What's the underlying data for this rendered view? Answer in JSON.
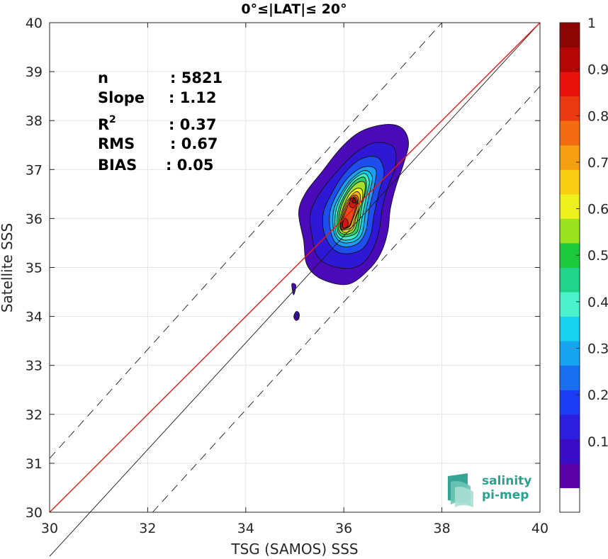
{
  "chart_data": {
    "type": "contour-scatter",
    "title": "0°≤|LAT|≤ 20°",
    "xlabel": "TSG (SAMOS) SSS",
    "ylabel": "Satellite SSS",
    "xlim": [
      30,
      40
    ],
    "ylim": [
      30,
      40
    ],
    "xticks": [
      "30",
      "32",
      "34",
      "36",
      "38",
      "40"
    ],
    "yticks": [
      "30",
      "31",
      "32",
      "33",
      "34",
      "35",
      "36",
      "37",
      "38",
      "39",
      "40"
    ],
    "grid": true,
    "stats": [
      {
        "label": "n",
        "value": ": 5821"
      },
      {
        "label": "Slope",
        "value": ": 1.12"
      },
      {
        "label": "R",
        "sup": "2",
        "value": ": 0.37"
      },
      {
        "label": "RMS",
        "value": ": 0.67"
      },
      {
        "label": "BIAS",
        "value": ": 0.05"
      }
    ],
    "lines": [
      {
        "name": "identity",
        "color": "#1a1a1a",
        "style": "solid",
        "points": [
          [
            30,
            29.1
          ],
          [
            40,
            40
          ]
        ]
      },
      {
        "name": "regression",
        "color": "#e8190f",
        "style": "solid",
        "points": [
          [
            30,
            30
          ],
          [
            40,
            40
          ]
        ]
      },
      {
        "name": "upper-bound",
        "color": "#1a1a1a",
        "style": "dashed",
        "points": [
          [
            30,
            31.1
          ],
          [
            38.0,
            40
          ]
        ]
      },
      {
        "name": "lower-bound",
        "color": "#1a1a1a",
        "style": "dashed",
        "points": [
          [
            32.1,
            30
          ],
          [
            40,
            38.7
          ]
        ]
      }
    ],
    "density_levels": [
      {
        "level": 0.05,
        "color": "#4a0ab8"
      },
      {
        "level": 0.1,
        "color": "#2e18d6"
      },
      {
        "level": 0.2,
        "color": "#1e4ef0"
      },
      {
        "level": 0.3,
        "color": "#1e9ef5"
      },
      {
        "level": 0.35,
        "color": "#14cdea"
      },
      {
        "level": 0.4,
        "color": "#3ff0c0"
      },
      {
        "level": 0.5,
        "color": "#2cd06a"
      },
      {
        "level": 0.6,
        "color": "#a6e22a"
      },
      {
        "level": 0.65,
        "color": "#f1f01a"
      },
      {
        "level": 0.7,
        "color": "#f8b413"
      },
      {
        "level": 0.8,
        "color": "#f07d14"
      },
      {
        "level": 0.85,
        "color": "#e84718"
      },
      {
        "level": 0.9,
        "color": "#d81512"
      },
      {
        "level": 1.0,
        "color": "#8c0a0a"
      }
    ],
    "contours": [
      {
        "level": 0.05,
        "points": [
          [
            36.1,
            34.66
          ],
          [
            35.55,
            34.76
          ],
          [
            35.25,
            35.05
          ],
          [
            35.18,
            35.55
          ],
          [
            35.08,
            36.12
          ],
          [
            35.22,
            36.52
          ],
          [
            35.55,
            36.95
          ],
          [
            35.95,
            37.45
          ],
          [
            36.35,
            37.78
          ],
          [
            36.85,
            37.92
          ],
          [
            37.18,
            37.85
          ],
          [
            37.32,
            37.55
          ],
          [
            37.22,
            37.12
          ],
          [
            37.06,
            36.65
          ],
          [
            36.95,
            36.2
          ],
          [
            36.9,
            35.75
          ],
          [
            36.78,
            35.35
          ],
          [
            36.55,
            35.0
          ]
        ]
      },
      {
        "level": 0.1,
        "points": [
          [
            36.1,
            34.98
          ],
          [
            35.7,
            35.05
          ],
          [
            35.45,
            35.25
          ],
          [
            35.35,
            35.65
          ],
          [
            35.32,
            36.1
          ],
          [
            35.5,
            36.5
          ],
          [
            35.85,
            36.95
          ],
          [
            36.25,
            37.35
          ],
          [
            36.65,
            37.55
          ],
          [
            37.02,
            37.45
          ],
          [
            37.05,
            37.05
          ],
          [
            36.9,
            36.65
          ],
          [
            36.78,
            36.2
          ],
          [
            36.72,
            35.75
          ],
          [
            36.58,
            35.35
          ],
          [
            36.38,
            35.08
          ]
        ]
      },
      {
        "level": 0.2,
        "points": [
          [
            36.05,
            35.28
          ],
          [
            35.78,
            35.38
          ],
          [
            35.6,
            35.7
          ],
          [
            35.58,
            36.1
          ],
          [
            35.72,
            36.45
          ],
          [
            35.98,
            36.88
          ],
          [
            36.32,
            37.2
          ],
          [
            36.68,
            37.25
          ],
          [
            36.82,
            36.95
          ],
          [
            36.72,
            36.55
          ],
          [
            36.62,
            36.1
          ],
          [
            36.55,
            35.68
          ],
          [
            36.38,
            35.38
          ]
        ]
      },
      {
        "level": 0.3,
        "points": [
          [
            36.03,
            35.42
          ],
          [
            35.82,
            35.52
          ],
          [
            35.72,
            35.8
          ],
          [
            35.72,
            36.15
          ],
          [
            35.86,
            36.5
          ],
          [
            36.1,
            36.85
          ],
          [
            36.4,
            37.05
          ],
          [
            36.65,
            37.0
          ],
          [
            36.62,
            36.65
          ],
          [
            36.52,
            36.2
          ],
          [
            36.45,
            35.75
          ],
          [
            36.3,
            35.5
          ]
        ]
      },
      {
        "level": 0.35,
        "points": [
          [
            36.02,
            35.5
          ],
          [
            35.85,
            35.6
          ],
          [
            35.78,
            35.85
          ],
          [
            35.8,
            36.2
          ],
          [
            35.94,
            36.5
          ],
          [
            36.15,
            36.8
          ],
          [
            36.42,
            36.98
          ],
          [
            36.58,
            36.85
          ],
          [
            36.52,
            36.5
          ],
          [
            36.44,
            36.1
          ],
          [
            36.38,
            35.72
          ],
          [
            36.25,
            35.55
          ]
        ]
      },
      {
        "level": 0.4,
        "points": [
          [
            36.0,
            35.56
          ],
          [
            35.86,
            35.66
          ],
          [
            35.82,
            35.9
          ],
          [
            35.85,
            36.2
          ],
          [
            35.98,
            36.5
          ],
          [
            36.18,
            36.78
          ],
          [
            36.42,
            36.92
          ],
          [
            36.52,
            36.75
          ],
          [
            36.46,
            36.45
          ],
          [
            36.38,
            36.05
          ],
          [
            36.32,
            35.75
          ],
          [
            36.22,
            35.6
          ]
        ]
      },
      {
        "level": 0.5,
        "points": [
          [
            36.0,
            35.63
          ],
          [
            35.88,
            35.72
          ],
          [
            35.86,
            35.95
          ],
          [
            35.9,
            36.22
          ],
          [
            36.04,
            36.52
          ],
          [
            36.22,
            36.76
          ],
          [
            36.42,
            36.84
          ],
          [
            36.46,
            36.6
          ],
          [
            36.38,
            36.3
          ],
          [
            36.32,
            35.95
          ],
          [
            36.25,
            35.7
          ]
        ]
      },
      {
        "level": 0.6,
        "points": [
          [
            36.0,
            35.68
          ],
          [
            35.9,
            35.77
          ],
          [
            35.9,
            36.0
          ],
          [
            35.95,
            36.25
          ],
          [
            36.08,
            36.52
          ],
          [
            36.26,
            36.72
          ],
          [
            36.42,
            36.74
          ],
          [
            36.42,
            36.5
          ],
          [
            36.32,
            36.2
          ],
          [
            36.26,
            35.88
          ],
          [
            36.18,
            35.72
          ]
        ]
      },
      {
        "level": 0.65,
        "points": [
          [
            36.0,
            35.72
          ],
          [
            35.92,
            35.82
          ],
          [
            35.93,
            36.02
          ],
          [
            36.0,
            36.26
          ],
          [
            36.12,
            36.5
          ],
          [
            36.28,
            36.62
          ],
          [
            36.38,
            36.56
          ],
          [
            36.36,
            36.32
          ],
          [
            36.26,
            36.05
          ],
          [
            36.2,
            35.82
          ],
          [
            36.12,
            35.74
          ]
        ]
      },
      {
        "level": 0.7,
        "points": [
          [
            35.98,
            35.76
          ],
          [
            35.93,
            35.85
          ],
          [
            35.96,
            36.06
          ],
          [
            36.03,
            36.28
          ],
          [
            36.13,
            36.44
          ],
          [
            36.26,
            36.55
          ],
          [
            36.34,
            36.46
          ],
          [
            36.3,
            36.22
          ],
          [
            36.22,
            35.98
          ],
          [
            36.16,
            35.82
          ]
        ]
      },
      {
        "level": 0.8,
        "points": [
          [
            35.98,
            35.78
          ],
          [
            35.94,
            35.86
          ],
          [
            35.98,
            36.06
          ],
          [
            36.05,
            36.26
          ],
          [
            36.14,
            36.42
          ],
          [
            36.24,
            36.48
          ],
          [
            36.3,
            36.4
          ],
          [
            36.26,
            36.2
          ],
          [
            36.18,
            35.98
          ],
          [
            36.12,
            35.84
          ]
        ]
      },
      {
        "level": 0.85,
        "points": [
          [
            35.99,
            35.8
          ],
          [
            35.96,
            35.88
          ],
          [
            36.0,
            36.05
          ],
          [
            36.08,
            36.26
          ],
          [
            36.16,
            36.4
          ],
          [
            36.24,
            36.44
          ],
          [
            36.28,
            36.34
          ],
          [
            36.22,
            36.14
          ],
          [
            36.16,
            35.95
          ],
          [
            36.1,
            35.84
          ]
        ]
      },
      {
        "level": 0.9,
        "points": [
          [
            36.0,
            35.8
          ],
          [
            35.97,
            35.88
          ],
          [
            36.02,
            36.0
          ],
          [
            36.08,
            35.95
          ],
          [
            36.08,
            35.85
          ]
        ]
      },
      {
        "level": 0.9,
        "points": [
          [
            36.12,
            36.26
          ],
          [
            36.14,
            36.4
          ],
          [
            36.22,
            36.42
          ],
          [
            36.26,
            36.32
          ],
          [
            36.2,
            36.22
          ]
        ]
      },
      {
        "level": 1.0,
        "points": [
          [
            36.17,
            36.33
          ],
          [
            36.18,
            36.4
          ],
          [
            36.24,
            36.4
          ],
          [
            36.24,
            36.32
          ]
        ]
      },
      {
        "level": 0.05,
        "points": [
          [
            34.94,
            34.66
          ],
          [
            35.02,
            34.64
          ],
          [
            35.0,
            34.5
          ],
          [
            34.97,
            34.45
          ]
        ]
      },
      {
        "level": 0.05,
        "points": [
          [
            34.98,
            34.0
          ],
          [
            35.03,
            34.1
          ],
          [
            35.09,
            34.06
          ],
          [
            35.08,
            33.95
          ],
          [
            35.02,
            33.92
          ]
        ]
      },
      {
        "level": 0.1,
        "points": [
          [
            35.01,
            34.0
          ],
          [
            35.04,
            34.05
          ],
          [
            35.07,
            34.02
          ],
          [
            35.05,
            33.96
          ]
        ]
      }
    ],
    "colorbar": {
      "ticks": [
        "0.1",
        "0.2",
        "0.3",
        "0.4",
        "0.5",
        "0.6",
        "0.7",
        "0.8",
        "0.9",
        "1"
      ],
      "colors": [
        "#ffffff",
        "#5b03a8",
        "#3a0ec8",
        "#2c1fe0",
        "#1a3cf5",
        "#1a6ef0",
        "#16a4f1",
        "#18d2ef",
        "#4cf2cc",
        "#20d48c",
        "#1cc93c",
        "#9ae11e",
        "#eef11d",
        "#f8cd12",
        "#f69f10",
        "#f36c12",
        "#ea3a12",
        "#e8110c",
        "#b50606",
        "#8c0505"
      ]
    }
  },
  "logo": {
    "line1": "salinity",
    "line2": "pi-mep"
  }
}
